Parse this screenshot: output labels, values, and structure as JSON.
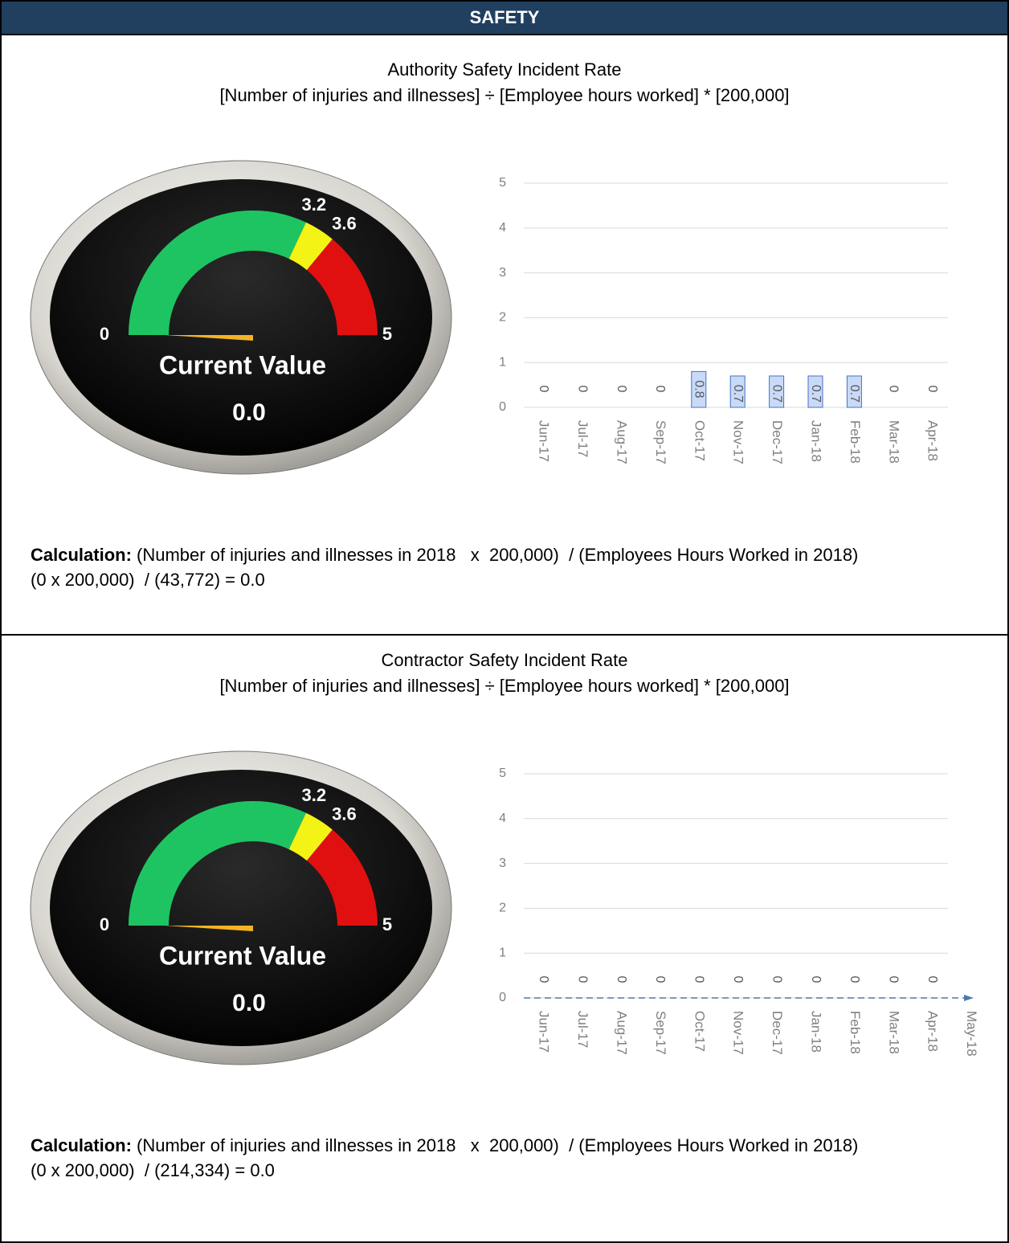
{
  "header": {
    "title": "SAFETY"
  },
  "sections": [
    {
      "title": "Authority Safety Incident Rate",
      "formula": "[Number of injuries and illnesses] ÷ [Employee hours worked] * [200,000]",
      "gauge": {
        "ticks": [
          0,
          3.2,
          3.6,
          5
        ],
        "band_colors": [
          "#1fc462",
          "#f3f315",
          "#e01010"
        ],
        "caption": "Current Value",
        "value": 0,
        "value_label": "0.0"
      },
      "chart": {
        "type": "bar",
        "categories": [
          "Jun-17",
          "Jul-17",
          "Aug-17",
          "Sep-17",
          "Oct-17",
          "Nov-17",
          "Dec-17",
          "Jan-18",
          "Feb-18",
          "Mar-18",
          "Apr-18"
        ],
        "values": [
          0,
          0,
          0,
          0,
          0.8,
          0.7,
          0.7,
          0.7,
          0.7,
          0,
          0
        ],
        "ylim": [
          0,
          5
        ],
        "yticks": [
          0,
          1,
          2,
          3,
          4,
          5
        ],
        "color": "#c9daf8",
        "grid": true
      },
      "calculation": {
        "label": "Calculation:",
        "text": " (Number of injuries and illnesses in 2018   x  200,000)  / (Employees Hours Worked in 2018)",
        "result": "(0 x 200,000)  / (43,772) = 0.0"
      }
    },
    {
      "title": "Contractor Safety Incident Rate",
      "formula": "[Number of injuries and illnesses] ÷ [Employee hours worked] * [200,000]",
      "gauge": {
        "ticks": [
          0,
          3.2,
          3.6,
          5
        ],
        "band_colors": [
          "#1fc462",
          "#f3f315",
          "#e01010"
        ],
        "caption": "Current Value",
        "value": 0,
        "value_label": "0.0"
      },
      "chart": {
        "type": "bar",
        "categories": [
          "Jun-17",
          "Jul-17",
          "Aug-17",
          "Sep-17",
          "Oct-17",
          "Nov-17",
          "Dec-17",
          "Jan-18",
          "Feb-18",
          "Mar-18",
          "Apr-18",
          "May-18"
        ],
        "values": [
          0,
          0,
          0,
          0,
          0,
          0,
          0,
          0,
          0,
          0,
          0,
          null
        ],
        "ylim": [
          0,
          5
        ],
        "yticks": [
          0,
          1,
          2,
          3,
          4,
          5
        ],
        "color": "#c9daf8",
        "grid": true
      },
      "calculation": {
        "label": "Calculation:",
        "text": " (Number of injuries and illnesses in 2018   x  200,000)  / (Employees Hours Worked in 2018)",
        "result": "(0 x 200,000)  / (214,334) = 0.0"
      }
    }
  ]
}
